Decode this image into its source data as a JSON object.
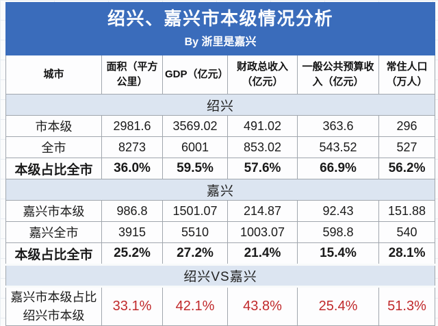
{
  "title": {
    "main": "绍兴、嘉兴市本级情况分析",
    "byline": "By 浙里是嘉兴"
  },
  "colors": {
    "title_bg": "#3a6cbb",
    "title_text": "#ffffff",
    "section_bg": "#dce5f1",
    "grid_line": "#a0a6ad",
    "highlight_red": "#c0292b"
  },
  "table": {
    "columns": [
      "城市",
      "面积（平方公里）",
      "GDP（亿元）",
      "财政总收入（亿元）",
      "一般公共预算收入（亿元）",
      "常住人口（万人）"
    ],
    "sections": [
      {
        "name": "绍兴",
        "rows": [
          {
            "label": "市本级",
            "values": [
              "2981.6",
              "3569.02",
              "491.02",
              "363.6",
              "296"
            ],
            "bold": false,
            "red": false
          },
          {
            "label": "全市",
            "values": [
              "8273",
              "6001",
              "853.02",
              "543.52",
              "527"
            ],
            "bold": false,
            "red": false
          },
          {
            "label": "本级占比全市",
            "values": [
              "36.0%",
              "59.5%",
              "57.6%",
              "66.9%",
              "56.2%"
            ],
            "bold": true,
            "red": false
          }
        ]
      },
      {
        "name": "嘉兴",
        "rows": [
          {
            "label": "嘉兴市本级",
            "values": [
              "986.8",
              "1501.07",
              "214.87",
              "92.43",
              "151.88"
            ],
            "bold": false,
            "red": false
          },
          {
            "label": "嘉兴全市",
            "values": [
              "3915",
              "5510",
              "1003.07",
              "598.8",
              "540"
            ],
            "bold": false,
            "red": false
          },
          {
            "label": "本级占比全市",
            "values": [
              "25.2%",
              "27.2%",
              "21.4%",
              "15.4%",
              "28.1%"
            ],
            "bold": true,
            "red": false
          }
        ]
      },
      {
        "name": "绍兴VS嘉兴",
        "rows": [
          {
            "label": "嘉兴市本级占比绍兴市本级",
            "values": [
              "33.1%",
              "42.1%",
              "43.8%",
              "25.4%",
              "51.3%"
            ],
            "bold": false,
            "red": true
          }
        ]
      }
    ]
  },
  "chart_data": {
    "type": "table",
    "title": "绍兴、嘉兴市本级情况分析",
    "subtitle": "By 浙里是嘉兴",
    "columns": [
      "城市",
      "面积（平方公里）",
      "GDP（亿元）",
      "财政总收入（亿元）",
      "一般公共预算收入（亿元）",
      "常住人口（万人）"
    ],
    "rows": [
      {
        "section": "绍兴",
        "label": "市本级",
        "values": [
          2981.6,
          3569.02,
          491.02,
          363.6,
          296
        ]
      },
      {
        "section": "绍兴",
        "label": "全市",
        "values": [
          8273,
          6001,
          853.02,
          543.52,
          527
        ]
      },
      {
        "section": "绍兴",
        "label": "本级占比全市",
        "values": [
          "36.0%",
          "59.5%",
          "57.6%",
          "66.9%",
          "56.2%"
        ]
      },
      {
        "section": "嘉兴",
        "label": "嘉兴市本级",
        "values": [
          986.8,
          1501.07,
          214.87,
          92.43,
          151.88
        ]
      },
      {
        "section": "嘉兴",
        "label": "嘉兴全市",
        "values": [
          3915,
          5510,
          1003.07,
          598.8,
          540
        ]
      },
      {
        "section": "嘉兴",
        "label": "本级占比全市",
        "values": [
          "25.2%",
          "27.2%",
          "21.4%",
          "15.4%",
          "28.1%"
        ]
      },
      {
        "section": "绍兴VS嘉兴",
        "label": "嘉兴市本级占比绍兴市本级",
        "values": [
          "33.1%",
          "42.1%",
          "43.8%",
          "25.4%",
          "51.3%"
        ]
      }
    ]
  }
}
